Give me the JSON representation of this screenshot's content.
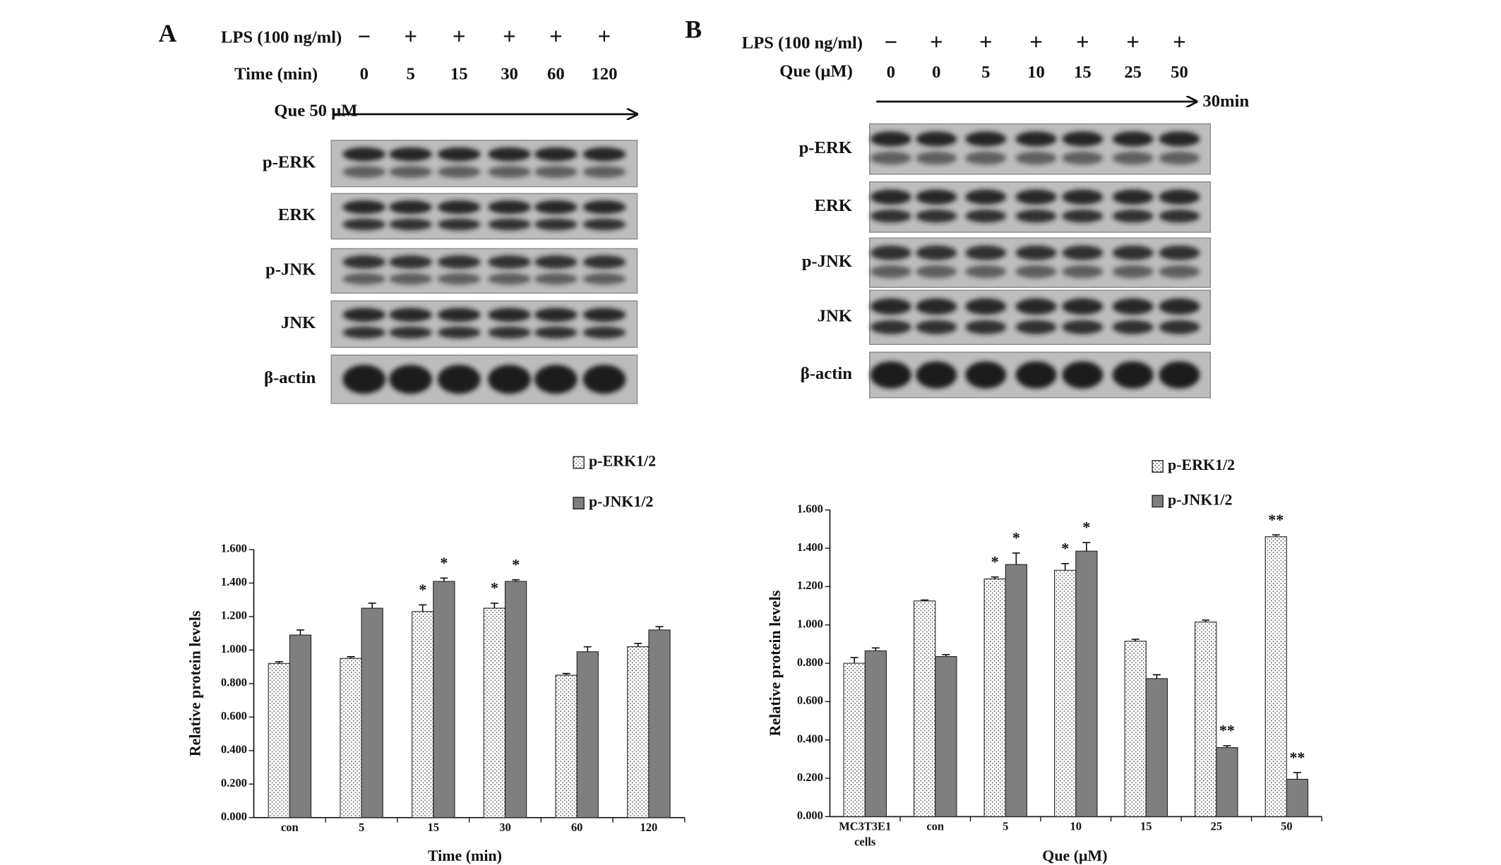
{
  "panels": [
    {
      "letter": "A",
      "lps_label": "LPS (100 ng/ml)",
      "lps": [
        "−",
        "+",
        "+",
        "+",
        "+",
        "+"
      ],
      "row2_label": "Time (min)",
      "row2": [
        "0",
        "5",
        "15",
        "30",
        "60",
        "120"
      ],
      "arrow_label": "Que 50 μM",
      "blot_rows": [
        "p-ERK",
        "ERK",
        "p-JNK",
        "JNK",
        "β-actin"
      ]
    },
    {
      "letter": "B",
      "lps_label": "LPS (100 ng/ml)",
      "lps": [
        "−",
        "+",
        "+",
        "+",
        "+",
        "+",
        "+"
      ],
      "row2_label": "Que (μM)",
      "row2": [
        "0",
        "0",
        "5",
        "10",
        "15",
        "25",
        "50"
      ],
      "arrow_label": "30min",
      "blot_rows": [
        "p-ERK",
        "ERK",
        "p-JNK",
        "JNK",
        "β-actin"
      ]
    }
  ],
  "chart_data": [
    {
      "type": "bar",
      "x_label": "Time (min)",
      "y_label": "Relative protein levels",
      "categories": [
        "con",
        "5",
        "15",
        "30",
        "60",
        "120"
      ],
      "ylim": [
        0,
        1.6
      ],
      "yticks": [
        {
          "value": 0,
          "label": "0.000"
        },
        {
          "value": 0.2,
          "label": "0.200"
        },
        {
          "value": 0.4,
          "label": "0.400"
        },
        {
          "value": 0.6,
          "label": "0.600"
        },
        {
          "value": 0.8,
          "label": "0.800"
        },
        {
          "value": 1.0,
          "label": "1.000"
        },
        {
          "value": 1.2,
          "label": "1.200"
        },
        {
          "value": 1.4,
          "label": "1.400"
        },
        {
          "value": 1.6,
          "label": "1.600"
        }
      ],
      "grid": false,
      "series": [
        {
          "name": "p-ERK1/2",
          "color": "#ffffff",
          "pattern": "dots",
          "values": [
            0.92,
            0.95,
            1.23,
            1.25,
            0.85,
            1.02
          ],
          "errors": [
            0.01,
            0.01,
            0.04,
            0.03,
            0.01,
            0.02
          ],
          "significance": [
            null,
            null,
            "*",
            "*",
            null,
            null
          ]
        },
        {
          "name": "p-JNK1/2",
          "color": "#7f7f7f",
          "values": [
            1.09,
            1.25,
            1.41,
            1.41,
            0.99,
            1.12
          ],
          "errors": [
            0.03,
            0.03,
            0.02,
            0.01,
            0.03,
            0.02
          ],
          "significance": [
            null,
            null,
            "*",
            "*",
            null,
            null
          ]
        }
      ]
    },
    {
      "type": "bar",
      "x_label": "Que (μM)",
      "y_label": "Relative protein levels",
      "categories": [
        "MC3T3E1 cells",
        "con",
        "5",
        "10",
        "15",
        "25",
        "50"
      ],
      "ylim": [
        0,
        1.6
      ],
      "yticks": [
        {
          "value": 0,
          "label": "0.000"
        },
        {
          "value": 0.2,
          "label": "0.200"
        },
        {
          "value": 0.4,
          "label": "0.400"
        },
        {
          "value": 0.6,
          "label": "0.600"
        },
        {
          "value": 0.8,
          "label": "0.800"
        },
        {
          "value": 1.0,
          "label": "1.000"
        },
        {
          "value": 1.2,
          "label": "1.200"
        },
        {
          "value": 1.4,
          "label": "1.400"
        },
        {
          "value": 1.6,
          "label": "1.600"
        }
      ],
      "grid": false,
      "series": [
        {
          "name": "p-ERK1/2",
          "color": "#ffffff",
          "pattern": "dots",
          "values": [
            0.8,
            1.125,
            1.24,
            1.285,
            0.915,
            1.015,
            1.46
          ],
          "errors": [
            0.03,
            0.005,
            0.01,
            0.035,
            0.01,
            0.01,
            0.01
          ],
          "significance": [
            null,
            null,
            "*",
            "*",
            null,
            null,
            "**"
          ]
        },
        {
          "name": "p-JNK1/2",
          "color": "#7f7f7f",
          "values": [
            0.865,
            0.835,
            1.315,
            1.385,
            0.72,
            0.36,
            0.195
          ],
          "errors": [
            0.015,
            0.01,
            0.06,
            0.045,
            0.02,
            0.01,
            0.035
          ],
          "significance": [
            null,
            null,
            "*",
            "*",
            null,
            "**",
            "**"
          ]
        }
      ]
    }
  ]
}
